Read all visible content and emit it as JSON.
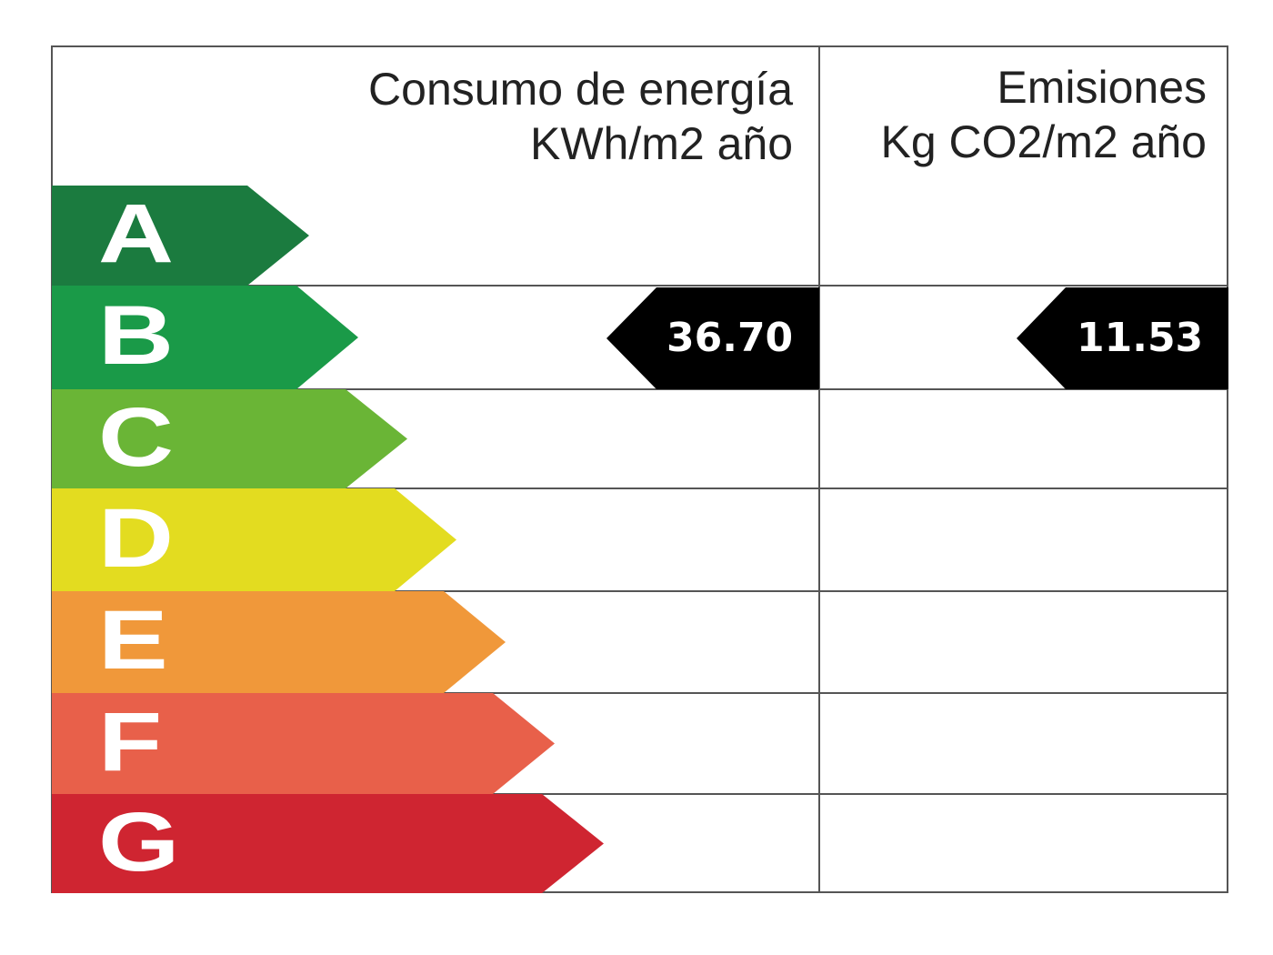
{
  "header": {
    "energy_line1": "Consumo de energía",
    "energy_line2": "KWh/m2 año",
    "emissions_line1": "Emisiones",
    "emissions_line2": "Kg CO2/m2 año"
  },
  "classes": [
    {
      "label": "A",
      "color": "#1b7b3f"
    },
    {
      "label": "B",
      "color": "#1a9a48"
    },
    {
      "label": "C",
      "color": "#6ab536"
    },
    {
      "label": "D",
      "color": "#e3dc20"
    },
    {
      "label": "E",
      "color": "#f0983a"
    },
    {
      "label": "F",
      "color": "#e8604a"
    },
    {
      "label": "G",
      "color": "#cf2531"
    }
  ],
  "rating": {
    "energy_class": "B",
    "energy_value": "36.70",
    "emissions_class": "B",
    "emissions_value": "11.53",
    "marker_color": "#000000"
  }
}
